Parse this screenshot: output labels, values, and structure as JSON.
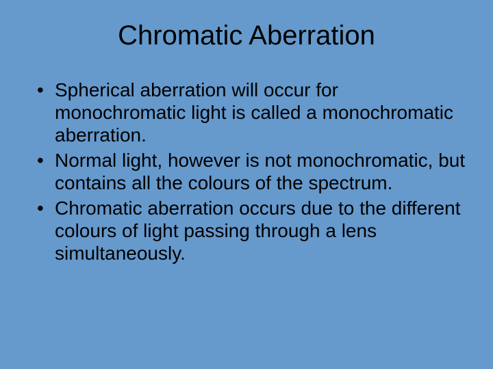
{
  "background_color": "#6699cc",
  "text_color": "#000000",
  "title": "Chromatic Aberration",
  "title_fontsize": 40,
  "body_fontsize": 28,
  "bullets": [
    "Spherical aberration will occur for monochromatic light is called a monochromatic aberration.",
    "Normal light, however is not monochromatic, but contains all the colours of the spectrum.",
    "Chromatic aberration occurs due to the different colours of light passing through a lens simultaneously."
  ]
}
